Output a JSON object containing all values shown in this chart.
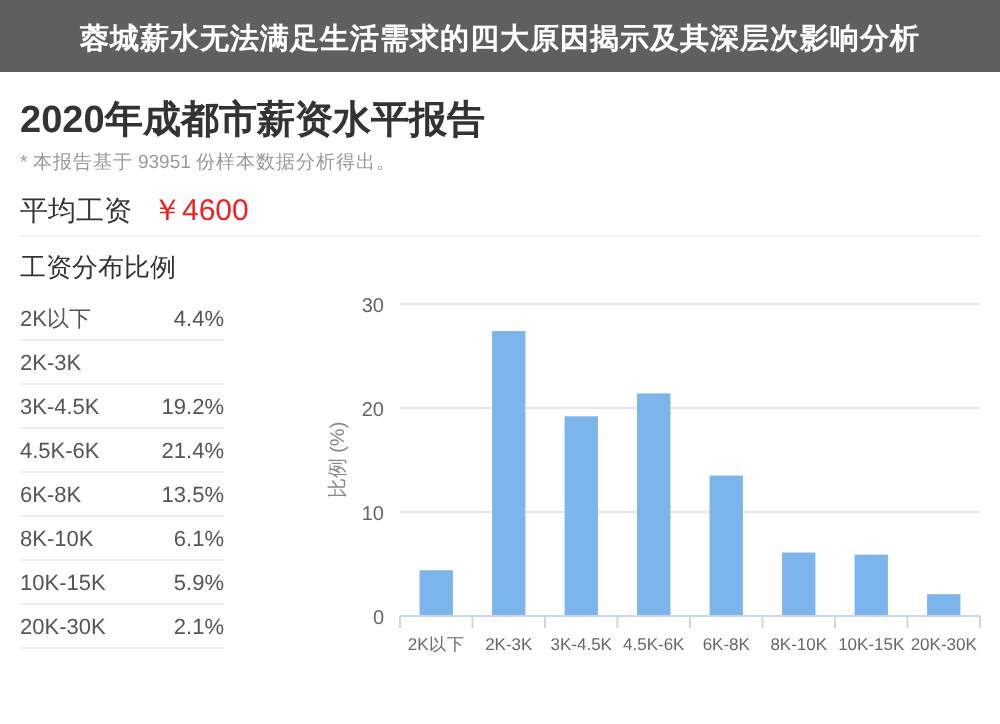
{
  "chart_data": [
    {
      "type": "bar",
      "title": "2020年成都市薪资水平报告",
      "subtitle": "* 本报告基于 93951 份样本数据分析得出。",
      "annotations": [
        "蓉城薪水无法满足生活需求的四大原因揭示及其深层次影响分析",
        "平均工资",
        "￥4600",
        "工资分布比例"
      ],
      "ylabel": "比例 (%)",
      "categories": [
        "2K以下",
        "2K-3K",
        "3K-4.5K",
        "4.5K-6K",
        "6K-8K",
        "8K-10K",
        "10K-15K",
        "20K-30K"
      ],
      "values": [
        4.4,
        27.4,
        19.2,
        21.4,
        13.5,
        6.1,
        5.9,
        2.1
      ],
      "color": "#7cb5ec",
      "ylim": [
        0,
        30
      ],
      "yticks": [
        0,
        10,
        20,
        30
      ],
      "grid": "y"
    },
    {
      "type": "other",
      "annotations": [
        "2K以下 4.4%",
        "2K-3K",
        "3K-4.5K 19.2%",
        "4.5K-6K 21.4%",
        "6K-8K 13.5%",
        "8K-10K 6.1%",
        "10K-15K 5.9%",
        "20K-30K 2.1%"
      ]
    }
  ]
}
